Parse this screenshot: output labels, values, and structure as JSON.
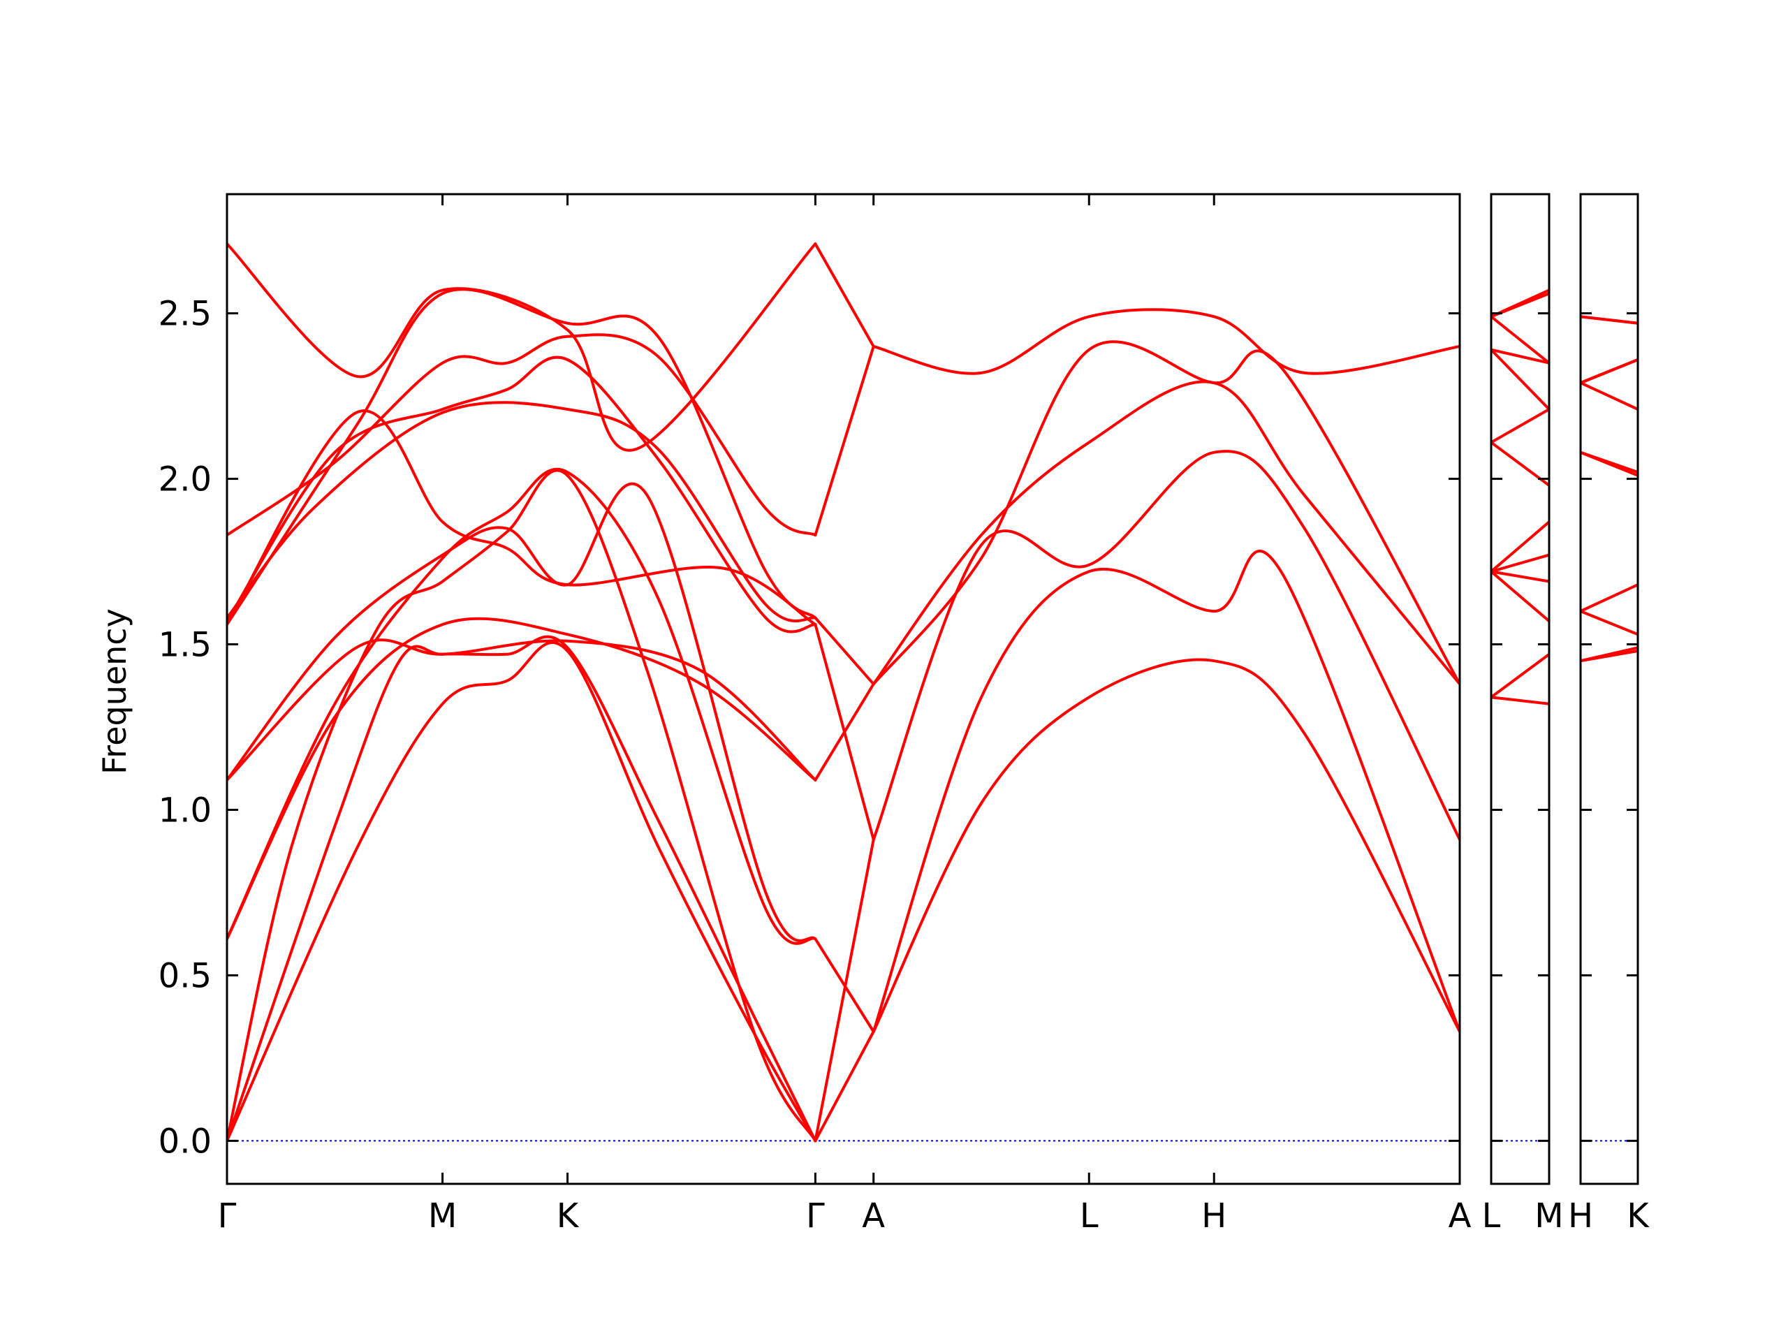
{
  "chart_data": {
    "type": "line",
    "ylabel": "Frequency",
    "ylim": [
      -0.13,
      2.86
    ],
    "yticks": [
      0.0,
      0.5,
      1.0,
      1.5,
      2.0,
      2.5
    ],
    "ytick_labels": [
      "0.0",
      "0.5",
      "1.0",
      "1.5",
      "2.0",
      "2.5"
    ],
    "grid": false,
    "legend": "none",
    "line_color": "#ff0000",
    "zero_line_color": "#0000cc",
    "panels": [
      {
        "name": "main",
        "x_range": [
          0,
          5.72
        ],
        "ticks": [
          {
            "x": 0,
            "label": "Γ"
          },
          {
            "x": 1.0,
            "label": "M"
          },
          {
            "x": 1.58,
            "label": "K"
          },
          {
            "x": 2.73,
            "label": "Γ"
          },
          {
            "x": 3.0,
            "label": "A"
          },
          {
            "x": 4.0,
            "label": "L"
          },
          {
            "x": 4.58,
            "label": "H"
          },
          {
            "x": 5.72,
            "label": "A"
          }
        ],
        "bands": [
          [
            [
              0,
              0
            ],
            [
              0.6,
              0.88
            ],
            [
              1.0,
              1.32
            ],
            [
              1.3,
              1.39
            ],
            [
              1.58,
              1.48
            ],
            [
              2.0,
              0.89
            ],
            [
              2.45,
              0.32
            ],
            [
              2.73,
              0
            ]
          ],
          [
            [
              0,
              0
            ],
            [
              0.5,
              0.95
            ],
            [
              0.8,
              1.45
            ],
            [
              1.0,
              1.47
            ],
            [
              1.3,
              1.47
            ],
            [
              1.58,
              1.49
            ],
            [
              2.0,
              0.97
            ],
            [
              2.45,
              0.37
            ],
            [
              2.73,
              0
            ]
          ],
          [
            [
              0,
              0
            ],
            [
              0.3,
              0.89
            ],
            [
              0.7,
              1.55
            ],
            [
              1.0,
              1.69
            ],
            [
              1.3,
              1.84
            ],
            [
              1.58,
              2.01
            ],
            [
              1.95,
              1.42
            ],
            [
              2.45,
              0.32
            ],
            [
              2.73,
              0
            ]
          ],
          [
            [
              0,
              0.61
            ],
            [
              0.5,
              1.28
            ],
            [
              1.0,
              1.56
            ],
            [
              1.58,
              1.53
            ],
            [
              2.2,
              1.38
            ],
            [
              2.73,
              1.09
            ]
          ],
          [
            [
              0,
              0.61
            ],
            [
              0.5,
              1.32
            ],
            [
              1.0,
              1.76
            ],
            [
              1.3,
              1.9
            ],
            [
              1.58,
              2.02
            ],
            [
              2.0,
              1.64
            ],
            [
              2.5,
              0.7
            ],
            [
              2.73,
              0.61
            ]
          ],
          [
            [
              0,
              1.09
            ],
            [
              0.6,
              1.49
            ],
            [
              1.0,
              1.47
            ],
            [
              1.58,
              1.51
            ],
            [
              2.2,
              1.42
            ],
            [
              2.73,
              1.09
            ]
          ],
          [
            [
              0,
              1.09
            ],
            [
              0.5,
              1.52
            ],
            [
              1.0,
              1.77
            ],
            [
              1.3,
              1.85
            ],
            [
              1.58,
              1.68
            ],
            [
              1.95,
              1.95
            ],
            [
              2.5,
              0.75
            ],
            [
              2.73,
              0.61
            ]
          ],
          [
            [
              0,
              1.56
            ],
            [
              0.6,
              2.2
            ],
            [
              1.0,
              1.87
            ],
            [
              1.3,
              1.79
            ],
            [
              1.58,
              1.68
            ],
            [
              2.3,
              1.73
            ],
            [
              2.73,
              1.56
            ]
          ],
          [
            [
              0,
              1.57
            ],
            [
              0.5,
              2.08
            ],
            [
              1.0,
              2.21
            ],
            [
              1.3,
              2.27
            ],
            [
              1.58,
              2.36
            ],
            [
              2.0,
              2.06
            ],
            [
              2.5,
              1.58
            ],
            [
              2.73,
              1.56
            ]
          ],
          [
            [
              0,
              1.58
            ],
            [
              0.4,
              1.91
            ],
            [
              1.0,
              2.2
            ],
            [
              1.58,
              2.21
            ],
            [
              2.0,
              2.09
            ],
            [
              2.5,
              1.62
            ],
            [
              2.73,
              1.58
            ]
          ],
          [
            [
              0,
              1.83
            ],
            [
              0.5,
              2.05
            ],
            [
              1.0,
              2.35
            ],
            [
              1.3,
              2.35
            ],
            [
              1.58,
              2.43
            ],
            [
              2.0,
              2.37
            ],
            [
              2.5,
              1.91
            ],
            [
              2.73,
              1.83
            ]
          ],
          [
            [
              0,
              2.71
            ],
            [
              0.6,
              2.31
            ],
            [
              1.0,
              2.57
            ],
            [
              1.58,
              2.45
            ],
            [
              1.9,
              2.09
            ],
            [
              2.73,
              2.71
            ]
          ],
          [
            [
              0,
              1.56
            ],
            [
              0.6,
              2.16
            ],
            [
              1.0,
              2.56
            ],
            [
              1.58,
              2.47
            ],
            [
              2.0,
              2.43
            ],
            [
              2.5,
              1.72
            ],
            [
              2.73,
              1.58
            ]
          ],
          [
            [
              2.73,
              0
            ],
            [
              3.0,
              0.33
            ]
          ],
          [
            [
              2.73,
              0
            ],
            [
              3.0,
              0.91
            ]
          ],
          [
            [
              2.73,
              0.61
            ],
            [
              3.0,
              0.33
            ]
          ],
          [
            [
              2.73,
              1.56
            ],
            [
              3.0,
              0.91
            ]
          ],
          [
            [
              2.73,
              1.09
            ],
            [
              3.0,
              1.38
            ]
          ],
          [
            [
              2.73,
              1.58
            ],
            [
              3.0,
              1.38
            ]
          ],
          [
            [
              2.73,
              1.83
            ],
            [
              3.0,
              2.4
            ]
          ],
          [
            [
              2.73,
              2.71
            ],
            [
              3.0,
              2.4
            ]
          ],
          [
            [
              3.0,
              0.33
            ],
            [
              3.5,
              1.02
            ],
            [
              4.0,
              1.34
            ],
            [
              4.58,
              1.45
            ],
            [
              5.0,
              1.23
            ],
            [
              5.72,
              0.33
            ]
          ],
          [
            [
              3.0,
              0.33
            ],
            [
              3.5,
              1.34
            ],
            [
              4.0,
              1.72
            ],
            [
              4.58,
              1.6
            ],
            [
              4.9,
              1.71
            ],
            [
              5.72,
              0.33
            ]
          ],
          [
            [
              3.0,
              0.91
            ],
            [
              3.5,
              1.8
            ],
            [
              4.0,
              1.74
            ],
            [
              4.58,
              2.08
            ],
            [
              5.0,
              1.85
            ],
            [
              5.72,
              0.91
            ]
          ],
          [
            [
              3.0,
              1.38
            ],
            [
              3.5,
              1.83
            ],
            [
              4.0,
              2.11
            ],
            [
              4.58,
              2.29
            ],
            [
              5.0,
              1.95
            ],
            [
              5.72,
              1.38
            ]
          ],
          [
            [
              3.0,
              1.38
            ],
            [
              3.5,
              1.76
            ],
            [
              4.0,
              2.39
            ],
            [
              4.58,
              2.29
            ],
            [
              4.9,
              2.33
            ],
            [
              5.72,
              1.38
            ]
          ],
          [
            [
              3.0,
              2.4
            ],
            [
              3.5,
              2.32
            ],
            [
              4.0,
              2.49
            ],
            [
              4.58,
              2.49
            ],
            [
              5.0,
              2.32
            ],
            [
              5.72,
              2.4
            ]
          ]
        ]
      },
      {
        "name": "L-M",
        "x_range": [
          0,
          1
        ],
        "ticks": [
          {
            "x": 0,
            "label": "L"
          },
          {
            "x": 1,
            "label": "M"
          }
        ],
        "bands": [
          [
            [
              0,
              1.34
            ],
            [
              1,
              1.32
            ]
          ],
          [
            [
              0,
              1.34
            ],
            [
              1,
              1.47
            ]
          ],
          [
            [
              0,
              1.72
            ],
            [
              1,
              1.57
            ]
          ],
          [
            [
              0,
              1.72
            ],
            [
              1,
              1.69
            ]
          ],
          [
            [
              0,
              1.72
            ],
            [
              1,
              1.77
            ]
          ],
          [
            [
              0,
              1.72
            ],
            [
              1,
              1.87
            ]
          ],
          [
            [
              0,
              2.11
            ],
            [
              1,
              1.98
            ]
          ],
          [
            [
              0,
              2.11
            ],
            [
              1,
              2.21
            ]
          ],
          [
            [
              0,
              2.39
            ],
            [
              1,
              2.21
            ]
          ],
          [
            [
              0,
              2.39
            ],
            [
              1,
              2.35
            ]
          ],
          [
            [
              0,
              2.49
            ],
            [
              1,
              2.35
            ]
          ],
          [
            [
              0,
              2.49
            ],
            [
              1,
              2.57
            ]
          ],
          [
            [
              0,
              2.49
            ],
            [
              1,
              2.56
            ]
          ]
        ]
      },
      {
        "name": "H-K",
        "x_range": [
          0,
          1
        ],
        "ticks": [
          {
            "x": 0,
            "label": "H"
          },
          {
            "x": 1,
            "label": "K"
          }
        ],
        "bands": [
          [
            [
              0,
              1.45
            ],
            [
              1,
              1.48
            ]
          ],
          [
            [
              0,
              1.45
            ],
            [
              1,
              1.49
            ]
          ],
          [
            [
              0,
              1.6
            ],
            [
              1,
              1.53
            ]
          ],
          [
            [
              0,
              1.6
            ],
            [
              1,
              1.68
            ]
          ],
          [
            [
              0,
              2.08
            ],
            [
              1,
              2.01
            ]
          ],
          [
            [
              0,
              2.08
            ],
            [
              1,
              2.02
            ]
          ],
          [
            [
              0,
              2.29
            ],
            [
              1,
              2.21
            ]
          ],
          [
            [
              0,
              2.29
            ],
            [
              1,
              2.36
            ]
          ],
          [
            [
              0,
              2.29
            ],
            [
              1,
              2.36
            ]
          ],
          [
            [
              0,
              2.29
            ],
            [
              1,
              2.36
            ]
          ],
          [
            [
              0,
              2.49
            ],
            [
              1,
              2.47
            ]
          ],
          [
            [
              0,
              2.49
            ],
            [
              1,
              2.47
            ]
          ]
        ]
      }
    ]
  }
}
